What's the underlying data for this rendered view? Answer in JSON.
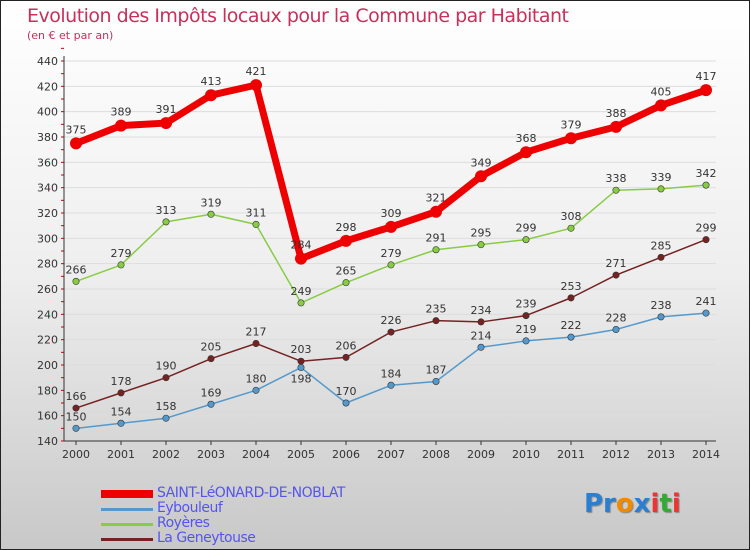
{
  "title": "Evolution des Impôts locaux pour la Commune par Habitant",
  "subtitle": "(en € et par an)",
  "logo": "Proxiti",
  "chart_data": {
    "type": "line",
    "title": "Evolution des Impôts locaux pour la Commune par Habitant",
    "subtitle": "(en € et par an)",
    "x": [
      2000,
      2001,
      2002,
      2003,
      2004,
      2005,
      2006,
      2007,
      2008,
      2009,
      2010,
      2011,
      2012,
      2013,
      2014
    ],
    "ylim": [
      140,
      440
    ],
    "yticks": [
      140,
      160,
      180,
      200,
      220,
      240,
      260,
      280,
      300,
      320,
      340,
      360,
      380,
      400,
      420,
      440
    ],
    "legend_position": "bottom-left",
    "series": [
      {
        "name": "SAINT-LéONARD-DE-NOBLAT",
        "color": "#ee0000",
        "values": [
          375,
          389,
          391,
          413,
          421,
          284,
          298,
          309,
          321,
          349,
          368,
          379,
          388,
          405,
          417
        ]
      },
      {
        "name": "Eybouleuf",
        "color": "#5599cc",
        "values": [
          150,
          154,
          158,
          169,
          180,
          198,
          170,
          184,
          187,
          214,
          219,
          222,
          228,
          238,
          241
        ]
      },
      {
        "name": "Royères",
        "color": "#88cc44",
        "values": [
          266,
          279,
          313,
          319,
          311,
          249,
          265,
          279,
          291,
          295,
          299,
          308,
          338,
          339,
          342
        ]
      },
      {
        "name": "La Geneytouse",
        "color": "#772222",
        "values": [
          166,
          178,
          190,
          205,
          217,
          203,
          206,
          226,
          235,
          234,
          239,
          253,
          271,
          285,
          299
        ]
      }
    ]
  }
}
